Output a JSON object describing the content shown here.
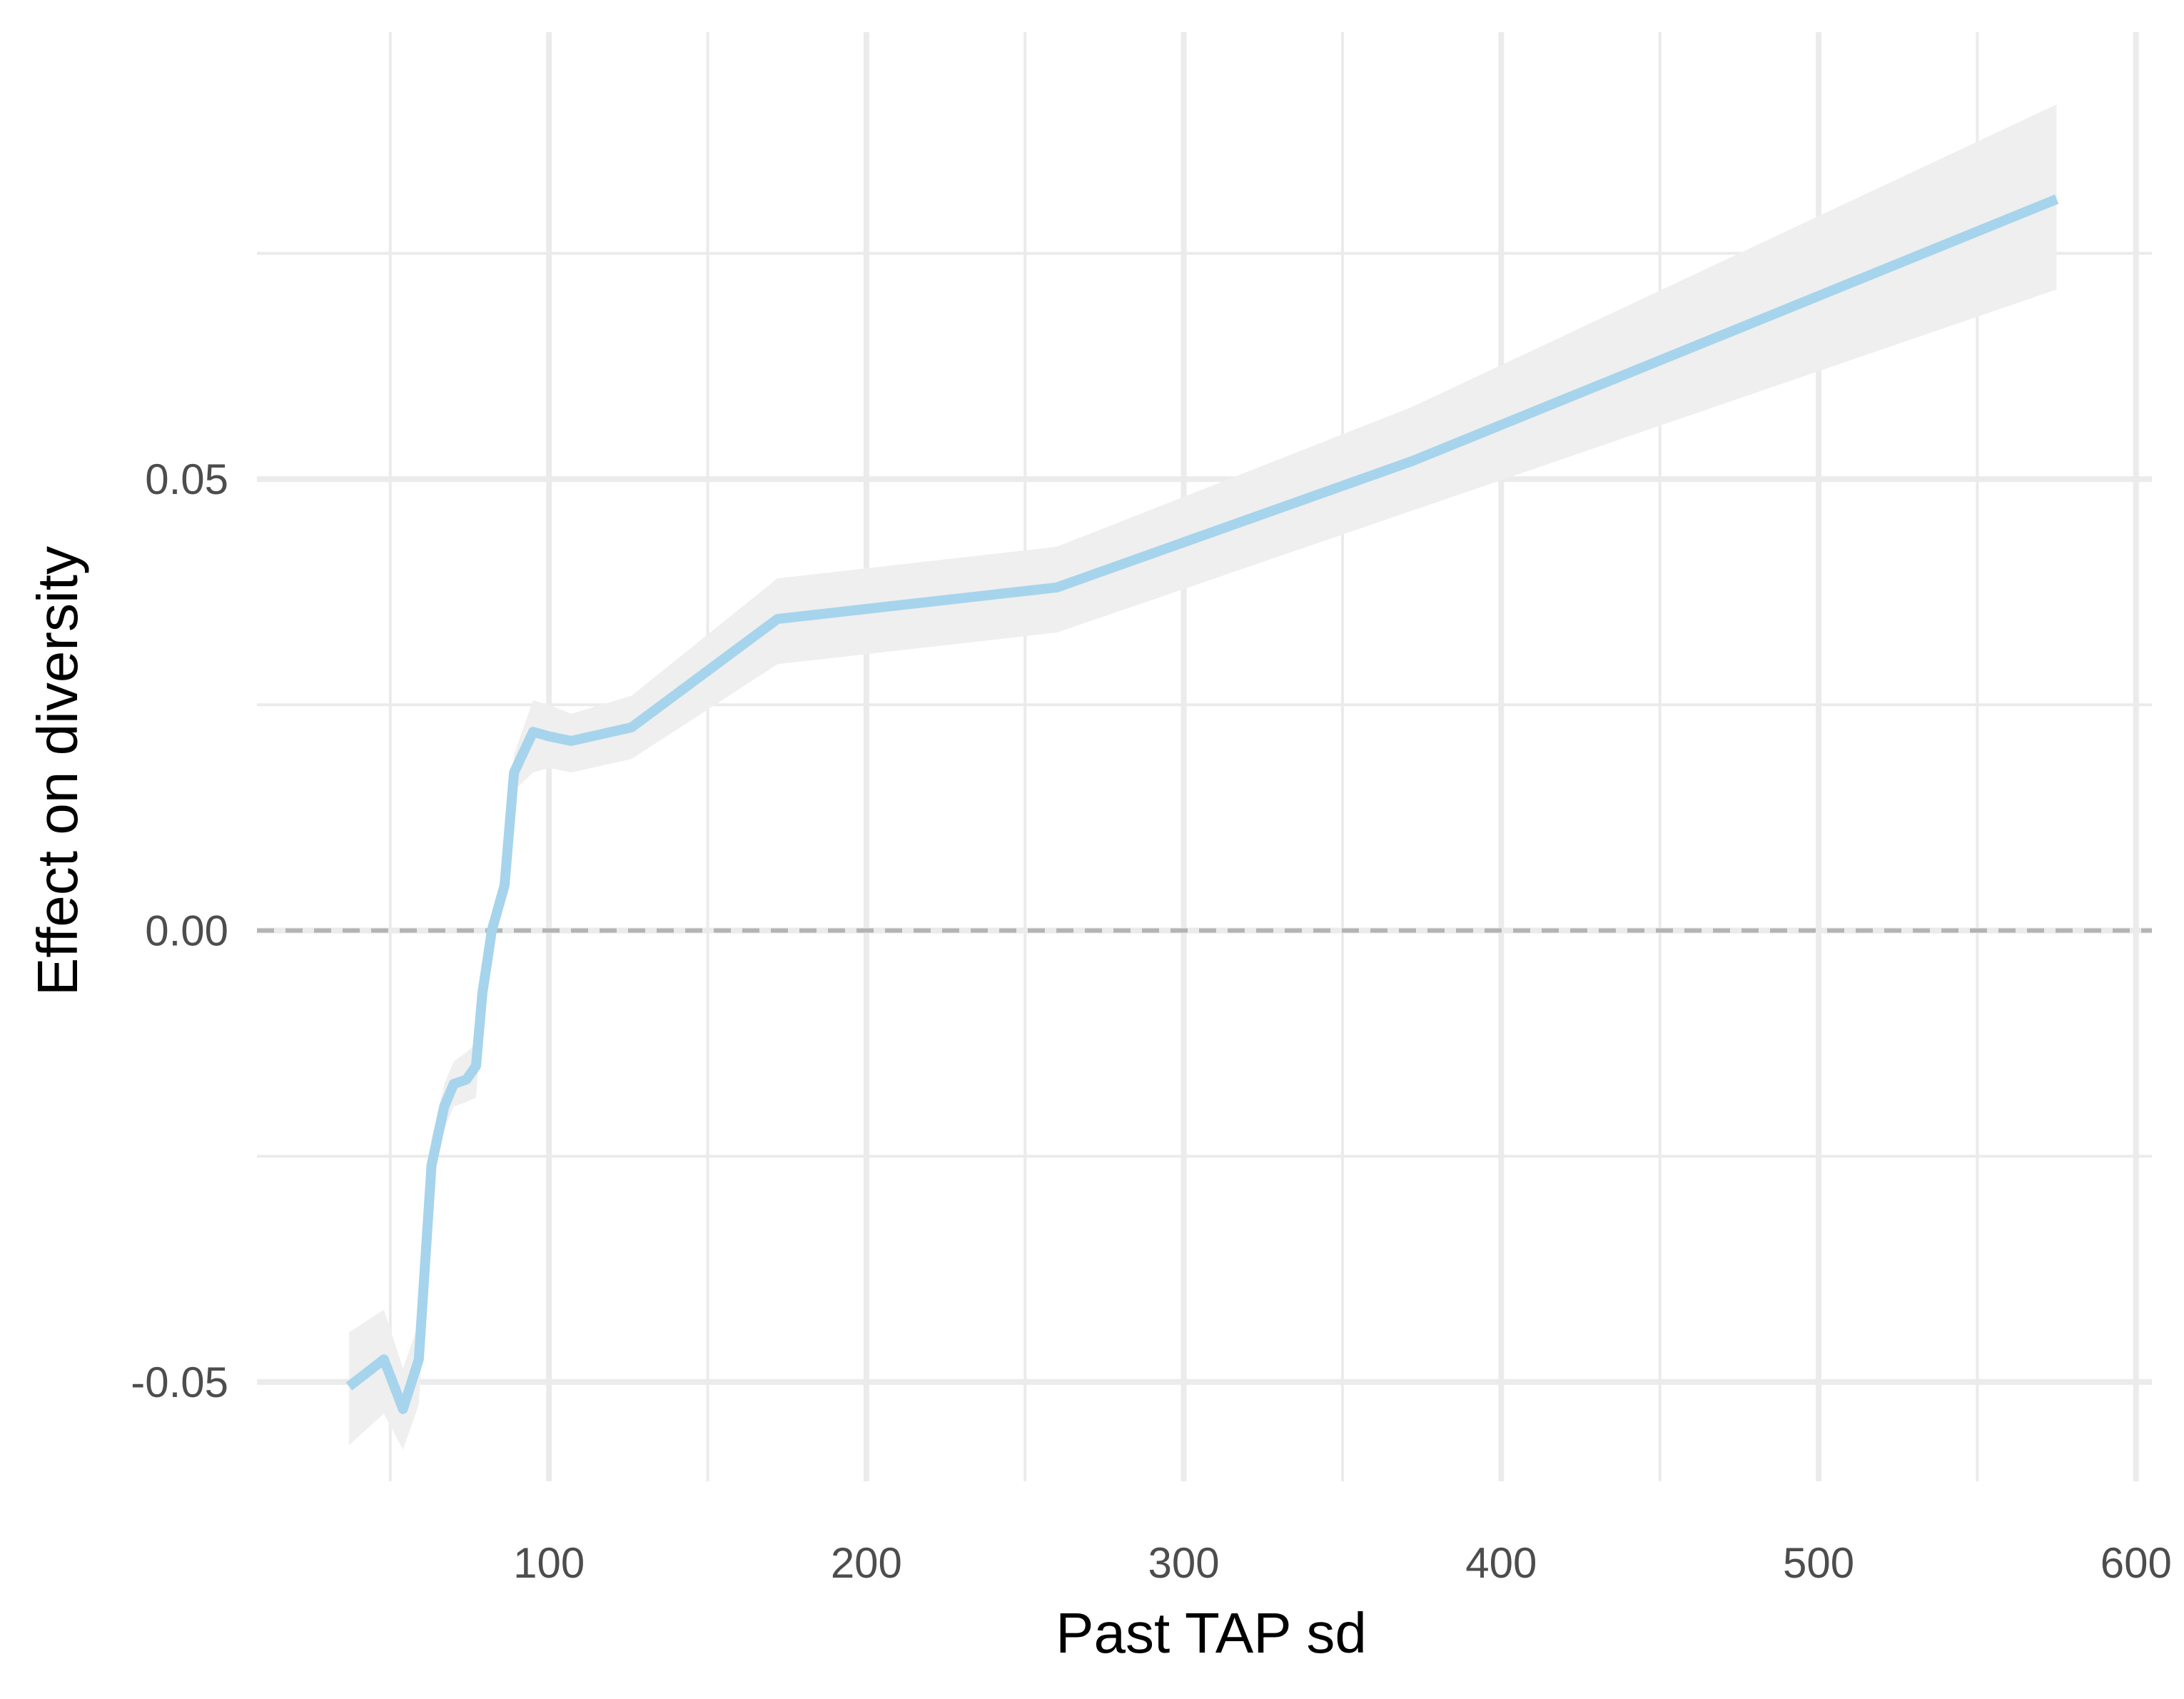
{
  "chart_data": {
    "type": "line",
    "title": "",
    "xlabel": "Past TAP sd",
    "ylabel": "Effect on diversity",
    "xlim": [
      8,
      605
    ],
    "ylim": [
      -0.061,
      0.0995
    ],
    "x_ticks": [
      100,
      200,
      300,
      400,
      500,
      600
    ],
    "x_tick_labels": [
      "100",
      "200",
      "300",
      "400",
      "500",
      "600"
    ],
    "x_minor_ticks": [
      50,
      150,
      250,
      350,
      450,
      550
    ],
    "y_ticks": [
      -0.05,
      0.0,
      0.05
    ],
    "y_tick_labels": [
      "-0.05",
      "0.00",
      "0.05"
    ],
    "y_minor_ticks": [
      -0.025,
      0.025,
      0.075
    ],
    "grid": true,
    "reference_line": {
      "y": 0.0,
      "style": "dashed",
      "color": "#b3b3b3"
    },
    "series": [
      {
        "color": "#a6d4ec",
        "band_color": "#efefef",
        "points": [
          {
            "x": 37,
            "y": -0.0505,
            "lower": -0.057,
            "upper": -0.0445
          },
          {
            "x": 48,
            "y": -0.0475,
            "lower": -0.0535,
            "upper": -0.042
          },
          {
            "x": 54,
            "y": -0.053,
            "lower": -0.0575,
            "upper": -0.0485
          },
          {
            "x": 59,
            "y": -0.0475,
            "lower": -0.0525,
            "upper": -0.0435
          },
          {
            "x": 63,
            "y": -0.026,
            "lower": -0.029,
            "upper": -0.023
          },
          {
            "x": 67,
            "y": -0.0195,
            "lower": -0.022,
            "upper": -0.017
          },
          {
            "x": 70,
            "y": -0.017,
            "lower": -0.0195,
            "upper": -0.0145
          },
          {
            "x": 74,
            "y": -0.0165,
            "lower": -0.019,
            "upper": -0.0135
          },
          {
            "x": 77,
            "y": -0.015,
            "lower": -0.0185,
            "upper": -0.0125
          },
          {
            "x": 79,
            "y": -0.007,
            "lower": -0.009,
            "upper": -0.005
          },
          {
            "x": 82,
            "y": 0.0,
            "lower": -0.0015,
            "upper": 0.0015
          },
          {
            "x": 86,
            "y": 0.005,
            "lower": 0.0035,
            "upper": 0.0065
          },
          {
            "x": 89,
            "y": 0.0175,
            "lower": 0.0155,
            "upper": 0.0195
          },
          {
            "x": 95,
            "y": 0.022,
            "lower": 0.0175,
            "upper": 0.0255
          },
          {
            "x": 100,
            "y": 0.0215,
            "lower": 0.018,
            "upper": 0.025
          },
          {
            "x": 107,
            "y": 0.021,
            "lower": 0.0175,
            "upper": 0.024
          },
          {
            "x": 126,
            "y": 0.0225,
            "lower": 0.019,
            "upper": 0.026
          },
          {
            "x": 172,
            "y": 0.0345,
            "lower": 0.0295,
            "upper": 0.039
          },
          {
            "x": 260,
            "y": 0.038,
            "lower": 0.033,
            "upper": 0.0425
          },
          {
            "x": 372,
            "y": 0.052,
            "lower": 0.0465,
            "upper": 0.058
          },
          {
            "x": 575,
            "y": 0.081,
            "lower": 0.071,
            "upper": 0.0915
          }
        ]
      }
    ]
  }
}
